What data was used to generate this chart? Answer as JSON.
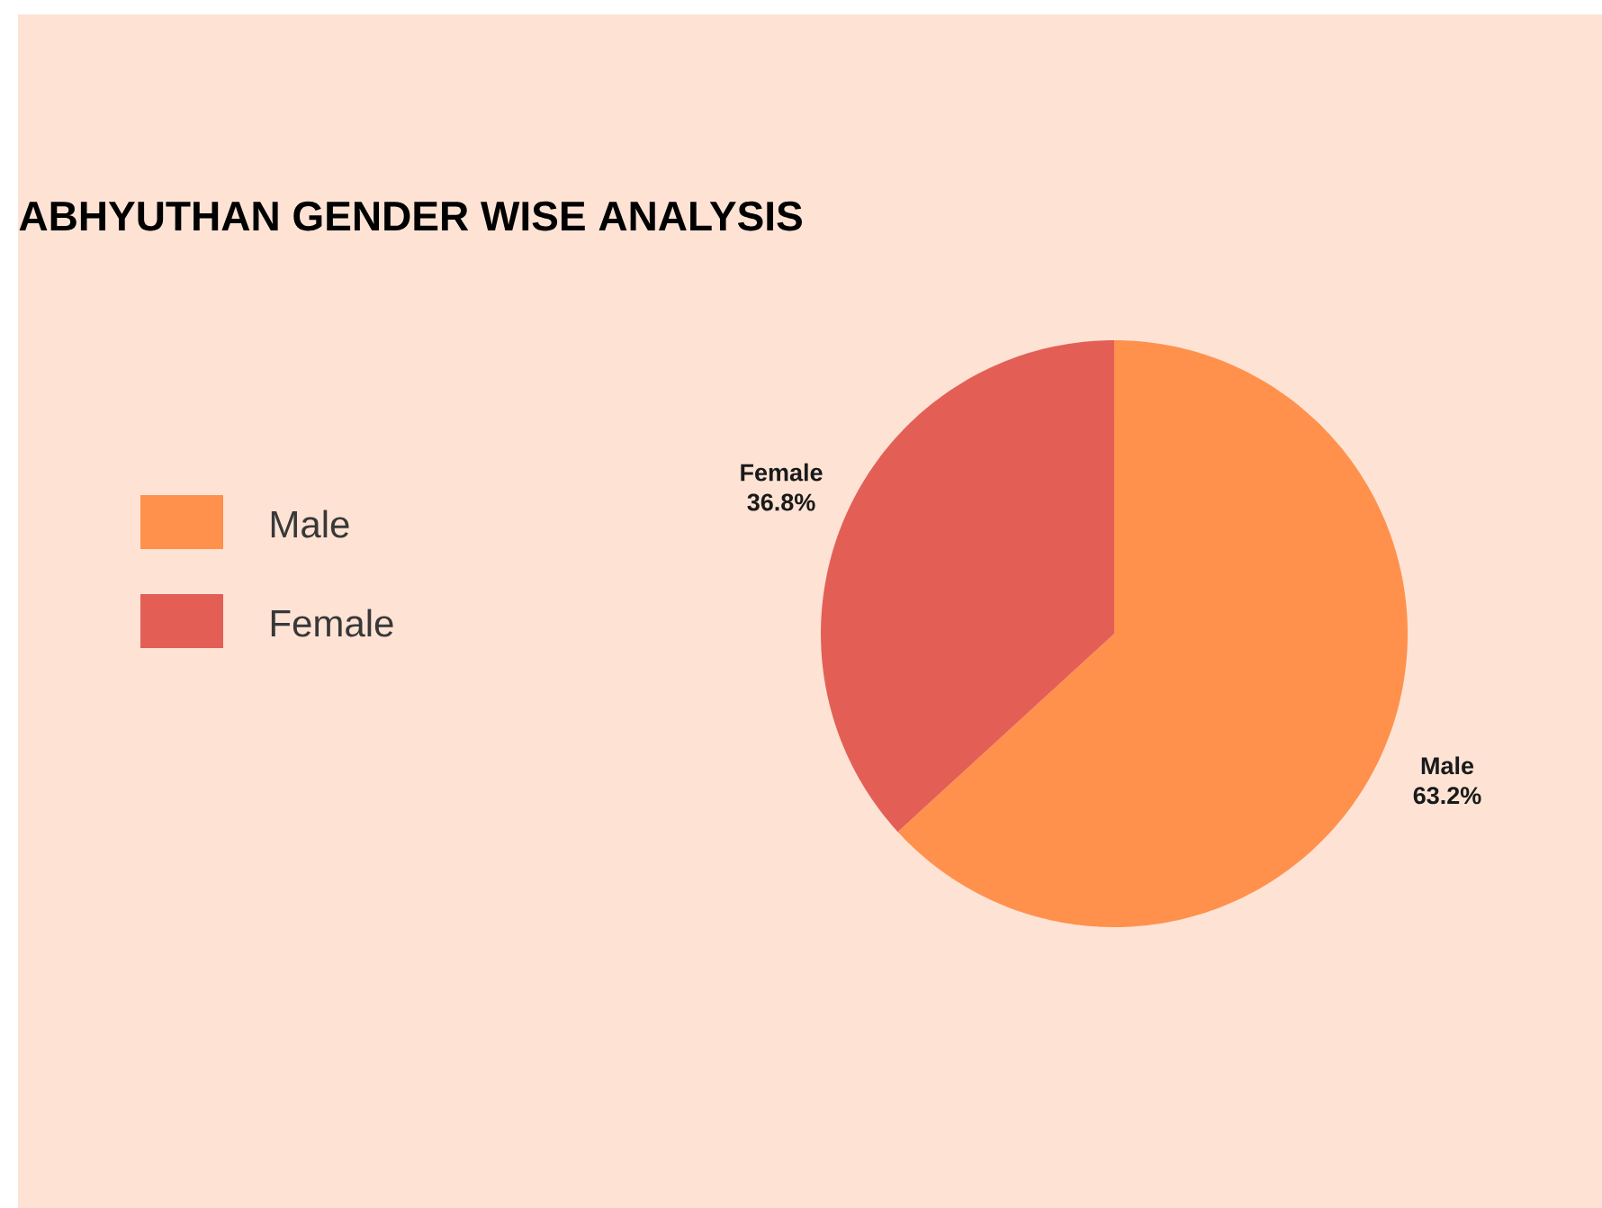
{
  "chart_data": {
    "type": "pie",
    "title": "ABHYUTHAN GENDER WISE ANALYSIS",
    "categories": [
      "Male",
      "Female"
    ],
    "values": [
      63.2,
      36.8
    ],
    "colors": [
      "#ff914d",
      "#e35f56"
    ],
    "value_labels": [
      "63.2%",
      "36.8%"
    ],
    "legend": "left"
  }
}
